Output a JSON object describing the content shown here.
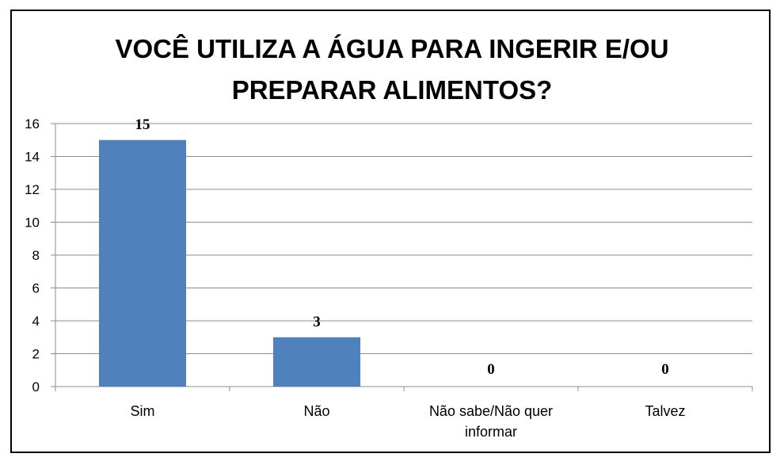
{
  "chart_data": {
    "type": "bar",
    "title_lines": [
      "VOCÊ UTILIZA A ÁGUA PARA INGERIR E/OU",
      "PREPARAR ALIMENTOS?"
    ],
    "categories": [
      [
        "Sim"
      ],
      [
        "Não"
      ],
      [
        "Não sabe/Não quer",
        "informar"
      ],
      [
        "Talvez"
      ]
    ],
    "values": [
      15,
      3,
      0,
      0
    ],
    "data_labels": [
      "15",
      "3",
      "0",
      "0"
    ],
    "yticks": [
      "0",
      "2",
      "4",
      "6",
      "8",
      "10",
      "12",
      "14",
      "16"
    ],
    "ylim": [
      0,
      16
    ],
    "grid": true,
    "legend": false,
    "bar_color": "#4f81bd",
    "grid_color": "#8c8c8c"
  }
}
